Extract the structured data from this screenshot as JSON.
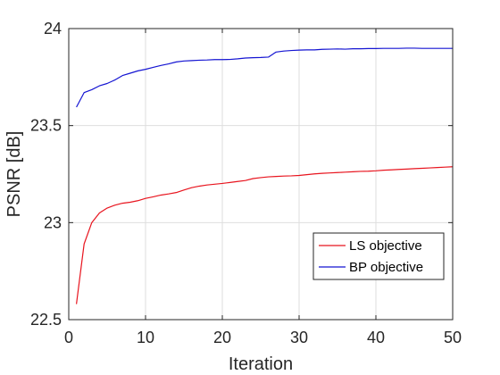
{
  "chart_data": {
    "type": "line",
    "xlabel": "Iteration",
    "ylabel": "PSNR [dB]",
    "xlim": [
      0,
      50
    ],
    "ylim": [
      22.5,
      24
    ],
    "xticks": [
      0,
      10,
      20,
      30,
      40,
      50
    ],
    "yticks": [
      22.5,
      23,
      23.5,
      24
    ],
    "xtick_labels": [
      "0",
      "10",
      "20",
      "30",
      "40",
      "50"
    ],
    "ytick_labels": [
      "22.5",
      "23",
      "23.5",
      "24"
    ],
    "grid": true,
    "legend_position": "bottom-right",
    "x": [
      1,
      2,
      3,
      4,
      5,
      6,
      7,
      8,
      9,
      10,
      11,
      12,
      13,
      14,
      15,
      16,
      17,
      18,
      19,
      20,
      21,
      22,
      23,
      24,
      25,
      26,
      27,
      28,
      29,
      30,
      31,
      32,
      33,
      34,
      35,
      36,
      37,
      38,
      39,
      40,
      41,
      42,
      43,
      44,
      45,
      46,
      47,
      48,
      49,
      50
    ],
    "series": [
      {
        "name": "LS objective",
        "color": "#e8141e",
        "values": [
          22.58,
          22.89,
          23.0,
          23.05,
          23.075,
          23.09,
          23.1,
          23.105,
          23.113,
          23.125,
          23.133,
          23.142,
          23.148,
          23.155,
          23.168,
          23.18,
          23.188,
          23.194,
          23.198,
          23.202,
          23.207,
          23.212,
          23.217,
          23.227,
          23.232,
          23.236,
          23.238,
          23.24,
          23.241,
          23.243,
          23.247,
          23.251,
          23.254,
          23.256,
          23.258,
          23.26,
          23.262,
          23.264,
          23.265,
          23.267,
          23.27,
          23.272,
          23.274,
          23.276,
          23.278,
          23.28,
          23.282,
          23.284,
          23.286,
          23.288
        ]
      },
      {
        "name": "BP objective",
        "color": "#1414d2",
        "values": [
          23.595,
          23.67,
          23.685,
          23.705,
          23.717,
          23.735,
          23.758,
          23.77,
          23.782,
          23.79,
          23.8,
          23.81,
          23.818,
          23.828,
          23.833,
          23.835,
          23.837,
          23.838,
          23.84,
          23.84,
          23.841,
          23.844,
          23.848,
          23.85,
          23.851,
          23.853,
          23.879,
          23.884,
          23.887,
          23.889,
          23.89,
          23.89,
          23.893,
          23.894,
          23.895,
          23.894,
          23.896,
          23.896,
          23.897,
          23.897,
          23.898,
          23.898,
          23.898,
          23.899,
          23.899,
          23.898,
          23.898,
          23.898,
          23.898,
          23.898
        ]
      }
    ]
  }
}
